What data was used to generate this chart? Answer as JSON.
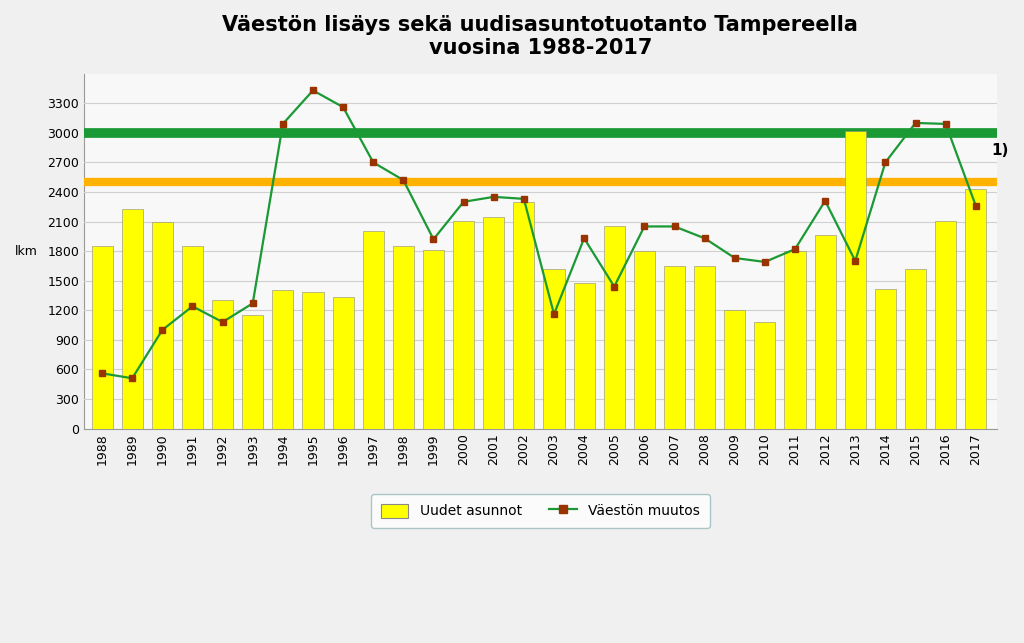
{
  "title": "Väestön lisäys sekä uudisasuntotuotanto Tampereella\nvuosina 1988-2017",
  "ylabel": "lkm",
  "years": [
    1988,
    1989,
    1990,
    1991,
    1992,
    1993,
    1994,
    1995,
    1996,
    1997,
    1998,
    1999,
    2000,
    2001,
    2002,
    2003,
    2004,
    2005,
    2006,
    2007,
    2008,
    2009,
    2010,
    2011,
    2012,
    2013,
    2014,
    2015,
    2016,
    2017
  ],
  "uudet_asunnot": [
    1850,
    2230,
    2100,
    1850,
    1300,
    1150,
    1410,
    1380,
    1330,
    2000,
    1850,
    1810,
    2110,
    2150,
    2300,
    1620,
    1480,
    2050,
    1800,
    1650,
    1650,
    1200,
    1080,
    1800,
    1960,
    3020,
    1420,
    1620,
    2110,
    2430
  ],
  "vaeston_muutos": [
    560,
    510,
    1000,
    1240,
    1080,
    1270,
    3090,
    3430,
    3260,
    2700,
    2520,
    1920,
    2300,
    2350,
    2330,
    1160,
    1930,
    1440,
    2050,
    2050,
    1930,
    1730,
    1690,
    1820,
    2310,
    1700,
    2700,
    3100,
    3090,
    2260
  ],
  "bar_color": "#FFFF00",
  "bar_edge_color": "#888888",
  "line_color": "#1a9934",
  "marker_color": "#993300",
  "hline1_value": 3000,
  "hline1_color": "#1a9934",
  "hline1_linewidth": 7,
  "hline2_value": 2500,
  "hline2_color": "#FFB300",
  "hline2_linewidth": 6,
  "hline1_label": "1)",
  "ylim": [
    0,
    3600
  ],
  "yticks": [
    0,
    300,
    600,
    900,
    1200,
    1500,
    1800,
    2100,
    2400,
    2700,
    3000,
    3300
  ],
  "legend_label_bar": "Uudet asunnot",
  "legend_label_line": "Väestön muutos",
  "title_fontsize": 15,
  "axis_fontsize": 9,
  "tick_fontsize": 9,
  "bg_color": "#f0f0f0",
  "plot_bg_color": "#f8f8f8",
  "legend_edge_color": "#99BBBB",
  "grid_color": "#d0d0d0"
}
